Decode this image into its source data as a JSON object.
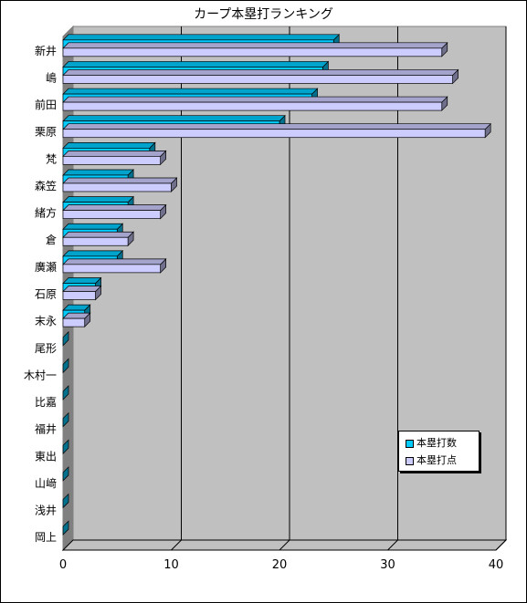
{
  "chart_data": {
    "type": "bar",
    "orientation": "horizontal",
    "title": "カープ本塁打ランキング",
    "categories": [
      "新井",
      "嶋",
      "前田",
      "栗原",
      "梵",
      "森笠",
      "緒方",
      "倉",
      "廣瀬",
      "石原",
      "末永",
      "尾形",
      "木村一",
      "比嘉",
      "福井",
      "東出",
      "山﨑",
      "浅井",
      "岡上"
    ],
    "series": [
      {
        "name": "本塁打数",
        "color": "#00CCFF",
        "values": [
          25,
          24,
          23,
          20,
          8,
          6,
          6,
          5,
          5,
          3,
          2,
          0,
          0,
          0,
          0,
          0,
          0,
          0,
          0
        ]
      },
      {
        "name": "本塁打点",
        "color": "#CCCCFF",
        "values": [
          35,
          36,
          35,
          39,
          9,
          10,
          9,
          6,
          9,
          3,
          2,
          0,
          0,
          0,
          0,
          0,
          0,
          0,
          0
        ]
      }
    ],
    "xlim": [
      0,
      40
    ],
    "xticks": [
      0,
      10,
      20,
      30,
      40
    ],
    "grid": true,
    "legend_position": "bottom-right",
    "three_d": true
  }
}
